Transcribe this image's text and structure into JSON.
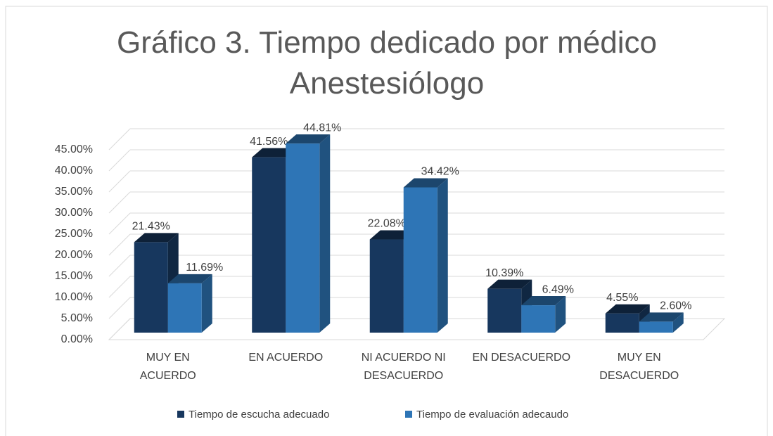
{
  "chart_data": {
    "type": "bar3d",
    "title": "Gráfico 3. Tiempo dedicado por médico Anestesiólogo",
    "categories": [
      "MUY EN ACUERDO",
      "EN ACUERDO",
      "NI ACUERDO NI DESACUERDO",
      "EN DESACUERDO",
      "MUY EN DESACUERDO"
    ],
    "series": [
      {
        "name": "Tiempo de escucha adecuado",
        "color": "#17375e",
        "values": [
          21.43,
          41.56,
          22.08,
          10.39,
          4.55
        ],
        "value_labels": [
          "21.43%",
          "41.56%",
          "22.08%",
          "10.39%",
          "4.55%"
        ]
      },
      {
        "name": "Tiempo de evaluación adecaudo",
        "color": "#2e75b6",
        "values": [
          11.69,
          44.81,
          34.42,
          6.49,
          2.6
        ],
        "value_labels": [
          "11.69%",
          "44.81%",
          "34.42%",
          "6.49%",
          "2.60%"
        ]
      }
    ],
    "ylim": [
      0,
      45
    ],
    "yticks": [
      {
        "value": 0,
        "label": "0.00%"
      },
      {
        "value": 5,
        "label": "5.00%"
      },
      {
        "value": 10,
        "label": "10.00%"
      },
      {
        "value": 15,
        "label": "15.00%"
      },
      {
        "value": 20,
        "label": "20.00%"
      },
      {
        "value": 25,
        "label": "25.00%"
      },
      {
        "value": 30,
        "label": "30.00%"
      },
      {
        "value": 35,
        "label": "35.00%"
      },
      {
        "value": 40,
        "label": "40.00%"
      },
      {
        "value": 45,
        "label": "45.00%"
      }
    ],
    "grid": true,
    "legend": "bottom"
  }
}
